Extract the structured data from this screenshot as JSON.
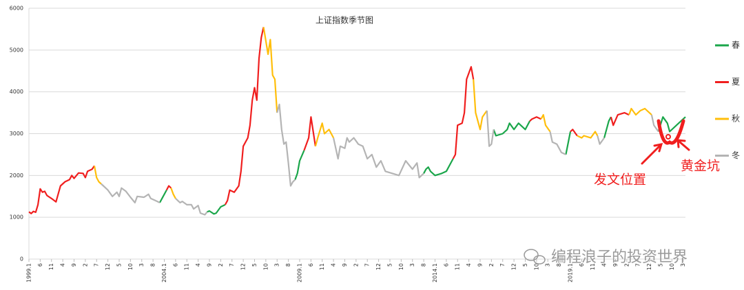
{
  "chart_data": {
    "type": "line",
    "title": "上证指数季节图",
    "ylim": [
      0,
      6000
    ],
    "yticks": [
      0,
      1000,
      2000,
      3000,
      4000,
      5000,
      6000
    ],
    "grid": true,
    "xlim": [
      0,
      291
    ],
    "xticks": [
      {
        "value": 0,
        "label": "1999.1"
      },
      {
        "value": 5,
        "label": "6"
      },
      {
        "value": 10,
        "label": "11"
      },
      {
        "value": 15,
        "label": "4"
      },
      {
        "value": 20,
        "label": "9"
      },
      {
        "value": 25,
        "label": "2"
      },
      {
        "value": 30,
        "label": "7"
      },
      {
        "value": 35,
        "label": "12"
      },
      {
        "value": 40,
        "label": "5"
      },
      {
        "value": 45,
        "label": "10"
      },
      {
        "value": 50,
        "label": "3"
      },
      {
        "value": 55,
        "label": "8"
      },
      {
        "value": 60,
        "label": "2004.1"
      },
      {
        "value": 65,
        "label": "6"
      },
      {
        "value": 70,
        "label": "11"
      },
      {
        "value": 75,
        "label": "4"
      },
      {
        "value": 80,
        "label": "9"
      },
      {
        "value": 85,
        "label": "2"
      },
      {
        "value": 90,
        "label": "7"
      },
      {
        "value": 95,
        "label": "12"
      },
      {
        "value": 100,
        "label": "5"
      },
      {
        "value": 105,
        "label": "10"
      },
      {
        "value": 110,
        "label": "3"
      },
      {
        "value": 115,
        "label": "8"
      },
      {
        "value": 120,
        "label": "2009.1"
      },
      {
        "value": 125,
        "label": "6"
      },
      {
        "value": 130,
        "label": "11"
      },
      {
        "value": 135,
        "label": "4"
      },
      {
        "value": 140,
        "label": "9"
      },
      {
        "value": 145,
        "label": "2"
      },
      {
        "value": 150,
        "label": "7"
      },
      {
        "value": 155,
        "label": "12"
      },
      {
        "value": 160,
        "label": "5"
      },
      {
        "value": 165,
        "label": "10"
      },
      {
        "value": 170,
        "label": "3"
      },
      {
        "value": 175,
        "label": "8"
      },
      {
        "value": 180,
        "label": "2014.1"
      },
      {
        "value": 185,
        "label": "6"
      },
      {
        "value": 190,
        "label": "11"
      },
      {
        "value": 195,
        "label": "4"
      },
      {
        "value": 200,
        "label": "9"
      },
      {
        "value": 205,
        "label": "2"
      },
      {
        "value": 210,
        "label": "7"
      },
      {
        "value": 215,
        "label": "12"
      },
      {
        "value": 220,
        "label": "5"
      },
      {
        "value": 225,
        "label": "10"
      },
      {
        "value": 230,
        "label": "3"
      },
      {
        "value": 235,
        "label": "8"
      },
      {
        "value": 240,
        "label": "2019.1"
      },
      {
        "value": 245,
        "label": "6"
      },
      {
        "value": 250,
        "label": "11"
      },
      {
        "value": 255,
        "label": "4"
      },
      {
        "value": 260,
        "label": "9"
      },
      {
        "value": 265,
        "label": "2"
      },
      {
        "value": 270,
        "label": "7"
      },
      {
        "value": 275,
        "label": "12"
      },
      {
        "value": 280,
        "label": "5"
      },
      {
        "value": 285,
        "label": "10"
      },
      {
        "value": 290,
        "label": "3"
      }
    ],
    "legend": "right",
    "series": [
      {
        "name": "春",
        "color": "#1aa64a",
        "x": [
          58,
          59,
          61,
          null,
          79,
          80,
          82,
          83,
          85,
          87,
          null,
          118,
          119,
          120,
          122,
          null,
          175,
          176,
          177,
          178,
          180,
          183,
          185,
          188,
          null,
          206,
          207,
          210,
          212,
          213,
          215,
          217,
          220,
          222,
          null,
          238,
          240,
          null,
          255,
          257,
          258,
          null,
          279,
          281,
          283,
          284,
          287,
          289,
          291
        ],
        "values": [
          1350,
          1450,
          1650,
          null,
          1130,
          1150,
          1080,
          1100,
          1250,
          1300,
          null,
          1900,
          2050,
          2350,
          2600,
          null,
          2050,
          2150,
          2200,
          2100,
          2000,
          2050,
          2100,
          2400,
          null,
          3100,
          2950,
          3000,
          3100,
          3250,
          3100,
          3250,
          3100,
          3300,
          null,
          2500,
          3050,
          null,
          2900,
          3300,
          3400,
          null,
          3050,
          3400,
          3250,
          3050,
          3200,
          3300,
          3400
        ]
      },
      {
        "name": "夏",
        "color": "#f01e1e",
        "x": [
          0,
          1,
          2,
          3,
          4,
          5,
          6,
          7,
          8,
          10,
          12,
          14,
          16,
          18,
          19,
          20,
          22,
          24,
          25,
          26,
          28,
          29,
          null,
          61,
          62,
          63,
          null,
          87,
          88,
          89,
          91,
          93,
          94,
          95,
          97,
          98,
          99,
          100,
          101,
          102,
          103,
          104,
          null,
          122,
          124,
          125,
          127,
          null,
          188,
          189,
          190,
          192,
          193,
          194,
          196,
          197,
          null,
          222,
          223,
          225,
          227,
          null,
          240,
          241,
          243,
          null,
          258,
          259,
          261,
          264,
          266
        ],
        "values": [
          1130,
          1090,
          1140,
          1120,
          1300,
          1680,
          1600,
          1620,
          1520,
          1450,
          1370,
          1750,
          1850,
          1900,
          2000,
          1930,
          2060,
          2050,
          1950,
          2100,
          2150,
          2230,
          null,
          1650,
          1750,
          1700,
          null,
          1300,
          1400,
          1650,
          1600,
          1750,
          2100,
          2700,
          2900,
          3200,
          3800,
          4100,
          3800,
          4800,
          5300,
          5550,
          null,
          2600,
          2900,
          3400,
          2700,
          null,
          2400,
          2500,
          3200,
          3250,
          3500,
          4300,
          4600,
          4300,
          null,
          3300,
          3350,
          3400,
          3350,
          null,
          3050,
          3100,
          2950,
          null,
          3400,
          3200,
          3450,
          3500,
          3450
        ]
      },
      {
        "name": "秋",
        "color": "#ffbe0a",
        "x": [
          29,
          30,
          31,
          32,
          null,
          63,
          64,
          65,
          null,
          104,
          106,
          107,
          108,
          109,
          110,
          null,
          127,
          128,
          130,
          131,
          133,
          135,
          null,
          197,
          198,
          200,
          201,
          203,
          null,
          227,
          228,
          229,
          231,
          null,
          243,
          245,
          246,
          249,
          251,
          252,
          null,
          266,
          267,
          269,
          271,
          273,
          276
        ],
        "values": [
          2230,
          1950,
          1850,
          1800,
          null,
          1700,
          1550,
          1450,
          null,
          5550,
          4900,
          5250,
          4400,
          4300,
          3500,
          null,
          2700,
          2900,
          3250,
          3000,
          3100,
          2900,
          null,
          4300,
          3500,
          3100,
          3400,
          3550,
          null,
          3350,
          3450,
          3200,
          3050,
          null,
          2950,
          2900,
          2950,
          2900,
          3050,
          2950,
          null,
          3450,
          3600,
          3450,
          3550,
          3600,
          3450
        ]
      },
      {
        "name": "冬",
        "color": "#b4b4b4",
        "x": [
          32,
          33,
          35,
          37,
          39,
          40,
          41,
          43,
          45,
          47,
          48,
          51,
          53,
          54,
          56,
          58,
          null,
          65,
          67,
          68,
          70,
          72,
          73,
          75,
          76,
          78,
          79,
          null,
          110,
          111,
          112,
          113,
          114,
          115,
          116,
          117,
          118,
          null,
          135,
          137,
          138,
          140,
          141,
          142,
          144,
          146,
          148,
          150,
          152,
          154,
          156,
          158,
          161,
          164,
          167,
          170,
          172,
          173,
          175,
          null,
          203,
          204,
          205,
          206,
          null,
          231,
          232,
          234,
          236,
          238,
          null,
          252,
          253,
          255,
          null,
          276,
          277,
          279
        ],
        "values": [
          1800,
          1750,
          1650,
          1500,
          1600,
          1500,
          1700,
          1620,
          1480,
          1350,
          1500,
          1480,
          1550,
          1450,
          1400,
          1350,
          null,
          1450,
          1350,
          1380,
          1300,
          1300,
          1200,
          1280,
          1100,
          1060,
          1130,
          null,
          3500,
          3700,
          3100,
          2750,
          2800,
          2300,
          1750,
          1850,
          1900,
          null,
          2900,
          2400,
          2700,
          2650,
          2900,
          2800,
          2900,
          2750,
          2700,
          2400,
          2500,
          2200,
          2350,
          2100,
          2050,
          2000,
          2350,
          2150,
          2300,
          1950,
          2050,
          null,
          3550,
          2700,
          2750,
          3100,
          null,
          3050,
          2800,
          2750,
          2550,
          2500,
          null,
          2950,
          2750,
          2900,
          null,
          3450,
          3200,
          3050
        ]
      }
    ],
    "annotations": [
      "发文位置",
      "黄金坑"
    ],
    "watermark": "编程浪子的投资世界"
  }
}
